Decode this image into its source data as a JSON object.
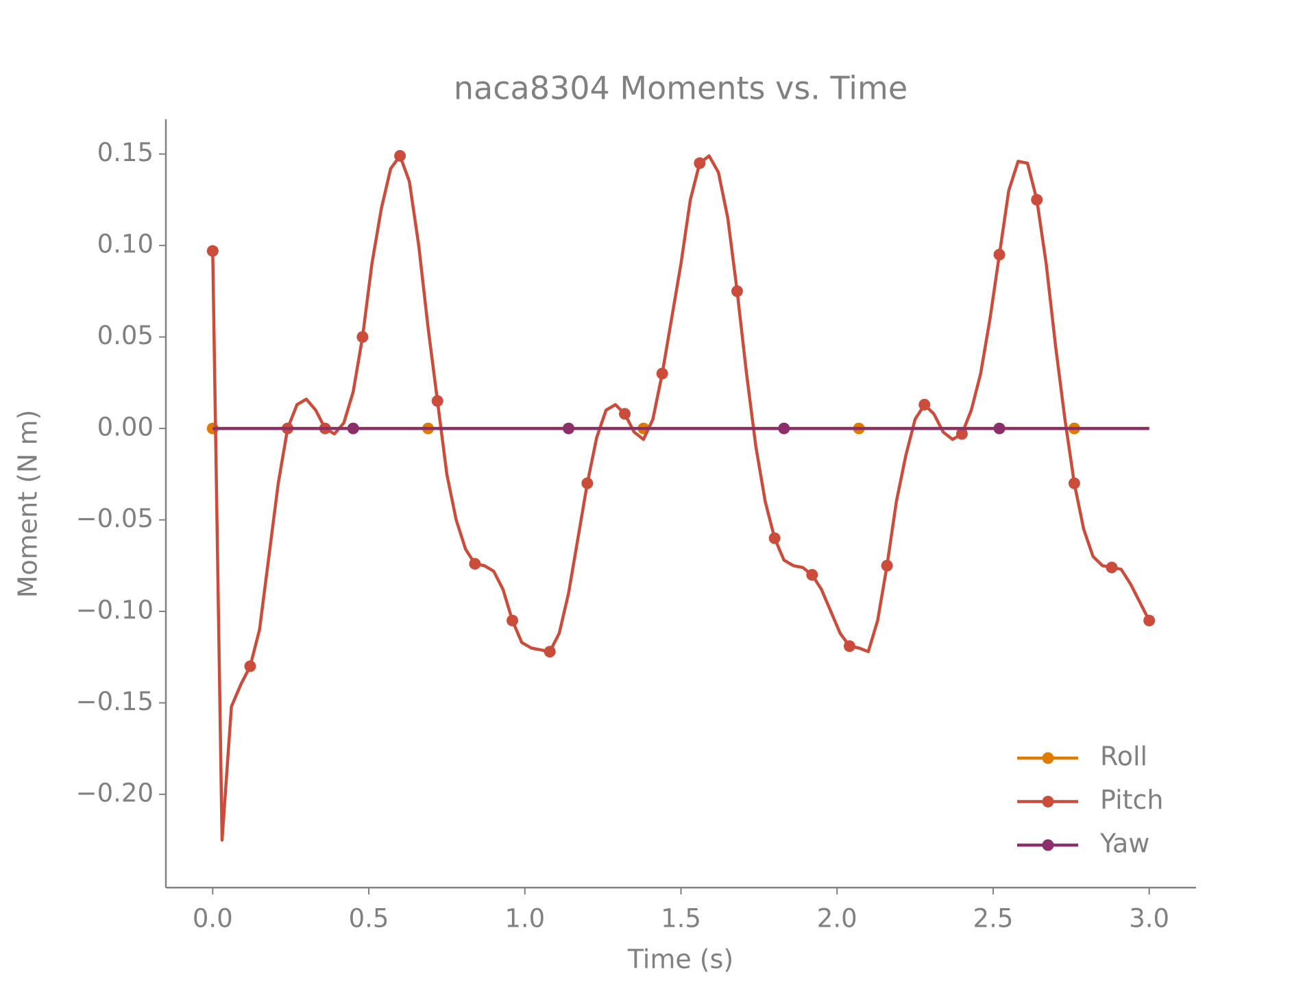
{
  "chart_data": {
    "type": "line",
    "title": "naca8304 Moments vs. Time",
    "x_label": "Time (s)",
    "y_label": "Moment (N m)",
    "x": [
      0,
      0.03,
      0.06,
      0.09,
      0.12,
      0.15,
      0.18,
      0.21,
      0.24,
      0.27,
      0.3,
      0.33,
      0.36,
      0.39,
      0.42,
      0.45,
      0.48,
      0.51,
      0.54,
      0.57,
      0.6,
      0.63,
      0.66,
      0.69,
      0.72,
      0.75,
      0.78,
      0.81,
      0.84,
      0.87,
      0.9,
      0.93,
      0.96,
      0.99,
      1.02,
      1.05,
      1.08,
      1.11,
      1.14,
      1.17,
      1.2,
      1.23,
      1.26,
      1.29,
      1.32,
      1.35,
      1.38,
      1.41,
      1.44,
      1.47,
      1.5,
      1.53,
      1.56,
      1.59,
      1.62,
      1.65,
      1.68,
      1.71,
      1.74,
      1.77,
      1.8,
      1.83,
      1.86,
      1.89,
      1.92,
      1.95,
      1.98,
      2.01,
      2.04,
      2.07,
      2.1,
      2.13,
      2.16,
      2.19,
      2.22,
      2.25,
      2.28,
      2.31,
      2.34,
      2.37,
      2.4,
      2.43,
      2.46,
      2.49,
      2.52,
      2.55,
      2.58,
      2.61,
      2.64,
      2.67,
      2.7,
      2.73,
      2.76,
      2.79,
      2.82,
      2.85,
      2.88,
      2.91,
      2.94,
      2.97,
      3.0
    ],
    "series": [
      {
        "name": "Roll",
        "color": "#e07b00",
        "markevery": [
          0,
          23
        ],
        "values": [
          0,
          0,
          0,
          0,
          0,
          0,
          0,
          0,
          0,
          0,
          0,
          0,
          0,
          0,
          0,
          0,
          0,
          0,
          0,
          0,
          0,
          0,
          0,
          0,
          0,
          0,
          0,
          0,
          0,
          0,
          0,
          0,
          0,
          0,
          0,
          0,
          0,
          0,
          0,
          0,
          0,
          0,
          0,
          0,
          0,
          0,
          0,
          0,
          0,
          0,
          0,
          0,
          0,
          0,
          0,
          0,
          0,
          0,
          0,
          0,
          0,
          0,
          0,
          0,
          0,
          0,
          0,
          0,
          0,
          0,
          0,
          0,
          0,
          0,
          0,
          0,
          0,
          0,
          0,
          0,
          0,
          0,
          0,
          0,
          0,
          0,
          0,
          0,
          0,
          0,
          0,
          0,
          0,
          0,
          0,
          0,
          0,
          0,
          0,
          0,
          0
        ]
      },
      {
        "name": "Pitch",
        "color": "#cc4c3b",
        "markevery": [
          0,
          4
        ],
        "values": [
          0.097,
          -0.225,
          -0.152,
          -0.14,
          -0.13,
          -0.11,
          -0.07,
          -0.03,
          0.0,
          0.013,
          0.016,
          0.01,
          0.0,
          -0.003,
          0.003,
          0.02,
          0.05,
          0.09,
          0.12,
          0.142,
          0.149,
          0.135,
          0.1,
          0.055,
          0.015,
          -0.025,
          -0.05,
          -0.066,
          -0.074,
          -0.075,
          -0.078,
          -0.088,
          -0.105,
          -0.117,
          -0.12,
          -0.121,
          -0.122,
          -0.112,
          -0.09,
          -0.06,
          -0.03,
          -0.005,
          0.01,
          0.013,
          0.008,
          -0.002,
          -0.006,
          0.005,
          0.03,
          0.06,
          0.09,
          0.125,
          0.145,
          0.149,
          0.14,
          0.115,
          0.075,
          0.03,
          -0.01,
          -0.04,
          -0.06,
          -0.072,
          -0.075,
          -0.076,
          -0.08,
          -0.088,
          -0.1,
          -0.112,
          -0.119,
          -0.12,
          -0.122,
          -0.105,
          -0.075,
          -0.04,
          -0.015,
          0.005,
          0.013,
          0.008,
          -0.002,
          -0.006,
          -0.003,
          0.01,
          0.03,
          0.06,
          0.095,
          0.13,
          0.146,
          0.145,
          0.125,
          0.09,
          0.045,
          0.005,
          -0.03,
          -0.055,
          -0.07,
          -0.075,
          -0.076,
          -0.077,
          -0.085,
          -0.095,
          -0.105
        ]
      },
      {
        "name": "Yaw",
        "color": "#8b2f6b",
        "markevery": [
          15,
          23
        ],
        "values": [
          0,
          0,
          0,
          0,
          0,
          0,
          0,
          0,
          0,
          0,
          0,
          0,
          0,
          0,
          0,
          0,
          0,
          0,
          0,
          0,
          0,
          0,
          0,
          0,
          0,
          0,
          0,
          0,
          0,
          0,
          0,
          0,
          0,
          0,
          0,
          0,
          0,
          0,
          0,
          0,
          0,
          0,
          0,
          0,
          0,
          0,
          0,
          0,
          0,
          0,
          0,
          0,
          0,
          0,
          0,
          0,
          0,
          0,
          0,
          0,
          0,
          0,
          0,
          0,
          0,
          0,
          0,
          0,
          0,
          0,
          0,
          0,
          0,
          0,
          0,
          0,
          0,
          0,
          0,
          0,
          0,
          0,
          0,
          0,
          0,
          0,
          0,
          0,
          0,
          0,
          0,
          0,
          0,
          0,
          0,
          0,
          0,
          0,
          0,
          0,
          0
        ]
      }
    ],
    "xlim": [
      -0.15,
      3.15
    ],
    "ylim": [
      -0.251,
      0.169
    ],
    "xticks": [
      {
        "value": 0,
        "label": "0.0"
      },
      {
        "value": 0.5,
        "label": "0.5"
      },
      {
        "value": 1,
        "label": "1.0"
      },
      {
        "value": 1.5,
        "label": "1.5"
      },
      {
        "value": 2,
        "label": "2.0"
      },
      {
        "value": 2.5,
        "label": "2.5"
      },
      {
        "value": 3,
        "label": "3.0"
      }
    ],
    "yticks": [
      {
        "value": -0.2,
        "label": "−0.20"
      },
      {
        "value": -0.15,
        "label": "−0.15"
      },
      {
        "value": -0.1,
        "label": "−0.10"
      },
      {
        "value": -0.05,
        "label": "−0.05"
      },
      {
        "value": 0,
        "label": "0.00"
      },
      {
        "value": 0.05,
        "label": "0.05"
      },
      {
        "value": 0.1,
        "label": "0.10"
      },
      {
        "value": 0.15,
        "label": "0.15"
      }
    ],
    "grid": false,
    "legend": "lower right"
  }
}
